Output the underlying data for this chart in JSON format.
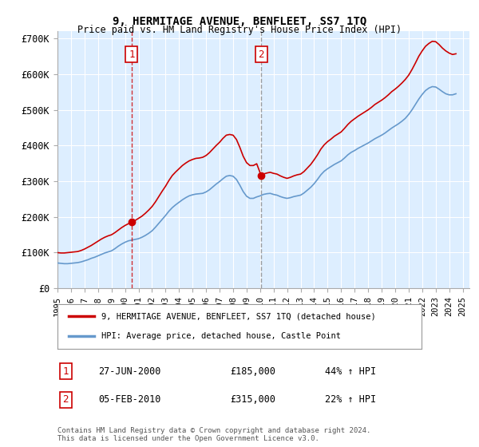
{
  "title": "9, HERMITAGE AVENUE, BENFLEET, SS7 1TQ",
  "subtitle": "Price paid vs. HM Land Registry's House Price Index (HPI)",
  "background_color": "#ffffff",
  "plot_bg_color": "#ddeeff",
  "grid_color": "#ffffff",
  "ylabel": "",
  "ylim": [
    0,
    720000
  ],
  "yticks": [
    0,
    100000,
    200000,
    300000,
    400000,
    500000,
    600000,
    700000
  ],
  "ytick_labels": [
    "£0",
    "£100K",
    "£200K",
    "£300K",
    "£400K",
    "£500K",
    "£600K",
    "£700K"
  ],
  "xlim_start": 1995.0,
  "xlim_end": 2025.5,
  "xtick_years": [
    1995,
    1996,
    1997,
    1998,
    1999,
    2000,
    2001,
    2002,
    2003,
    2004,
    2005,
    2006,
    2007,
    2008,
    2009,
    2010,
    2011,
    2012,
    2013,
    2014,
    2015,
    2016,
    2017,
    2018,
    2019,
    2020,
    2021,
    2022,
    2023,
    2024,
    2025
  ],
  "legend_house": "9, HERMITAGE AVENUE, BENFLEET, SS7 1TQ (detached house)",
  "legend_hpi": "HPI: Average price, detached house, Castle Point",
  "house_color": "#cc0000",
  "hpi_color": "#6699cc",
  "marker1_x": 2000.49,
  "marker1_y": 185000,
  "marker1_label": "1",
  "marker1_date": "27-JUN-2000",
  "marker1_price": "£185,000",
  "marker1_pct": "44% ↑ HPI",
  "marker2_x": 2010.09,
  "marker2_y": 315000,
  "marker2_label": "2",
  "marker2_date": "05-FEB-2010",
  "marker2_price": "£315,000",
  "marker2_pct": "22% ↑ HPI",
  "footer": "Contains HM Land Registry data © Crown copyright and database right 2024.\nThis data is licensed under the Open Government Licence v3.0.",
  "hpi_data_x": [
    1995.0,
    1995.25,
    1995.5,
    1995.75,
    1996.0,
    1996.25,
    1996.5,
    1996.75,
    1997.0,
    1997.25,
    1997.5,
    1997.75,
    1998.0,
    1998.25,
    1998.5,
    1998.75,
    1999.0,
    1999.25,
    1999.5,
    1999.75,
    2000.0,
    2000.25,
    2000.5,
    2000.75,
    2001.0,
    2001.25,
    2001.5,
    2001.75,
    2002.0,
    2002.25,
    2002.5,
    2002.75,
    2003.0,
    2003.25,
    2003.5,
    2003.75,
    2004.0,
    2004.25,
    2004.5,
    2004.75,
    2005.0,
    2005.25,
    2005.5,
    2005.75,
    2006.0,
    2006.25,
    2006.5,
    2006.75,
    2007.0,
    2007.25,
    2007.5,
    2007.75,
    2008.0,
    2008.25,
    2008.5,
    2008.75,
    2009.0,
    2009.25,
    2009.5,
    2009.75,
    2010.0,
    2010.25,
    2010.5,
    2010.75,
    2011.0,
    2011.25,
    2011.5,
    2011.75,
    2012.0,
    2012.25,
    2012.5,
    2012.75,
    2013.0,
    2013.25,
    2013.5,
    2013.75,
    2014.0,
    2014.25,
    2014.5,
    2014.75,
    2015.0,
    2015.25,
    2015.5,
    2015.75,
    2016.0,
    2016.25,
    2016.5,
    2016.75,
    2017.0,
    2017.25,
    2017.5,
    2017.75,
    2018.0,
    2018.25,
    2018.5,
    2018.75,
    2019.0,
    2019.25,
    2019.5,
    2019.75,
    2020.0,
    2020.25,
    2020.5,
    2020.75,
    2021.0,
    2021.25,
    2021.5,
    2021.75,
    2022.0,
    2022.25,
    2022.5,
    2022.75,
    2023.0,
    2023.25,
    2023.5,
    2023.75,
    2024.0,
    2024.25,
    2024.5
  ],
  "hpi_data_y": [
    71000,
    70000,
    69000,
    69000,
    70000,
    71000,
    72000,
    74000,
    77000,
    80000,
    84000,
    87000,
    91000,
    95000,
    99000,
    102000,
    105000,
    111000,
    118000,
    124000,
    129000,
    133000,
    135000,
    137000,
    139000,
    143000,
    148000,
    154000,
    161000,
    171000,
    182000,
    193000,
    204000,
    216000,
    226000,
    234000,
    241000,
    248000,
    254000,
    259000,
    262000,
    264000,
    265000,
    266000,
    270000,
    276000,
    284000,
    292000,
    299000,
    307000,
    314000,
    316000,
    314000,
    305000,
    289000,
    271000,
    258000,
    252000,
    252000,
    256000,
    259000,
    263000,
    265000,
    266000,
    263000,
    261000,
    257000,
    254000,
    252000,
    254000,
    257000,
    259000,
    261000,
    267000,
    275000,
    283000,
    293000,
    305000,
    318000,
    328000,
    335000,
    341000,
    347000,
    352000,
    357000,
    365000,
    374000,
    381000,
    386000,
    392000,
    397000,
    402000,
    407000,
    413000,
    419000,
    424000,
    429000,
    435000,
    442000,
    449000,
    455000,
    461000,
    468000,
    476000,
    487000,
    500000,
    515000,
    530000,
    543000,
    554000,
    561000,
    565000,
    564000,
    558000,
    551000,
    545000,
    542000,
    542000,
    545000
  ],
  "house_data_x": [
    1995.0,
    1995.25,
    1995.5,
    1995.75,
    1996.0,
    1996.25,
    1996.5,
    1996.75,
    1997.0,
    1997.25,
    1997.5,
    1997.75,
    1998.0,
    1998.25,
    1998.5,
    1998.75,
    1999.0,
    1999.25,
    1999.5,
    1999.75,
    2000.0,
    2000.25,
    2000.49,
    2000.75,
    2001.0,
    2001.25,
    2001.5,
    2001.75,
    2002.0,
    2002.25,
    2002.5,
    2002.75,
    2003.0,
    2003.25,
    2003.5,
    2003.75,
    2004.0,
    2004.25,
    2004.5,
    2004.75,
    2005.0,
    2005.25,
    2005.5,
    2005.75,
    2006.0,
    2006.25,
    2006.5,
    2006.75,
    2007.0,
    2007.25,
    2007.5,
    2007.75,
    2008.0,
    2008.25,
    2008.5,
    2008.75,
    2009.0,
    2009.25,
    2009.5,
    2009.75,
    2010.09,
    2010.25,
    2010.5,
    2010.75,
    2011.0,
    2011.25,
    2011.5,
    2011.75,
    2012.0,
    2012.25,
    2012.5,
    2012.75,
    2013.0,
    2013.25,
    2013.5,
    2013.75,
    2014.0,
    2014.25,
    2014.5,
    2014.75,
    2015.0,
    2015.25,
    2015.5,
    2015.75,
    2016.0,
    2016.25,
    2016.5,
    2016.75,
    2017.0,
    2017.25,
    2017.5,
    2017.75,
    2018.0,
    2018.25,
    2018.5,
    2018.75,
    2019.0,
    2019.25,
    2019.5,
    2019.75,
    2020.0,
    2020.25,
    2020.5,
    2020.75,
    2021.0,
    2021.25,
    2021.5,
    2021.75,
    2022.0,
    2022.25,
    2022.5,
    2022.75,
    2023.0,
    2023.25,
    2023.5,
    2023.75,
    2024.0,
    2024.25,
    2024.5
  ],
  "house_data_y": [
    100000,
    99000,
    99000,
    100000,
    101000,
    102000,
    103000,
    106000,
    110000,
    115000,
    120000,
    126000,
    132000,
    138000,
    143000,
    147000,
    150000,
    156000,
    163000,
    170000,
    176000,
    181000,
    185000,
    190000,
    196000,
    202000,
    210000,
    219000,
    229000,
    242000,
    257000,
    272000,
    286000,
    302000,
    316000,
    326000,
    335000,
    344000,
    351000,
    357000,
    361000,
    364000,
    365000,
    367000,
    372000,
    380000,
    390000,
    400000,
    409000,
    420000,
    429000,
    431000,
    429000,
    417000,
    395000,
    370000,
    352000,
    344000,
    344000,
    349000,
    315000,
    320000,
    323000,
    325000,
    322000,
    320000,
    315000,
    311000,
    308000,
    311000,
    315000,
    318000,
    320000,
    327000,
    337000,
    347000,
    360000,
    374000,
    390000,
    402000,
    411000,
    418000,
    426000,
    432000,
    438000,
    448000,
    459000,
    468000,
    475000,
    482000,
    488000,
    494000,
    500000,
    507000,
    515000,
    521000,
    527000,
    534000,
    542000,
    551000,
    558000,
    566000,
    575000,
    585000,
    597000,
    613000,
    631000,
    650000,
    665000,
    678000,
    686000,
    692000,
    691000,
    683000,
    673000,
    665000,
    659000,
    655000,
    657000
  ]
}
